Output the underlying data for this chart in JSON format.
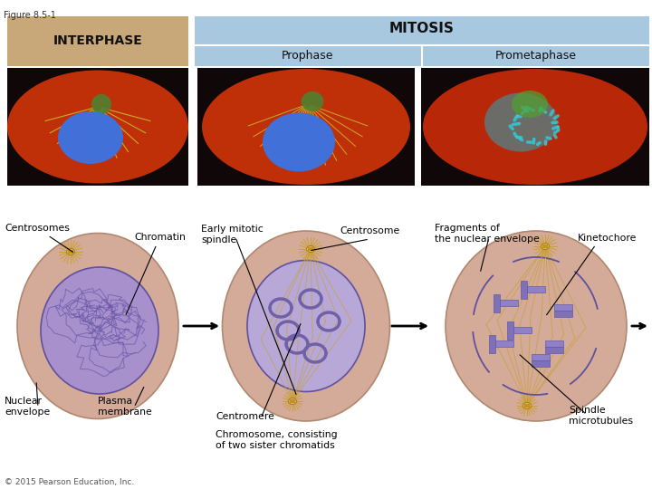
{
  "figure_label": "Figure 8.5-1",
  "background_color": "#ffffff",
  "interphase_box_color": "#c8a878",
  "mitosis_box_color": "#a8c8e0",
  "interphase_label": "INTERPHASE",
  "mitosis_label": "MITOSIS",
  "prophase_label": "Prophase",
  "prometaphase_label": "Prometaphase",
  "copyright": "© 2015 Pearson Education, Inc.",
  "cell_body_color": "#d4aa98",
  "cell_body_edge": "#b08870",
  "nucleus_interphase_color": "#a890cc",
  "nucleus_edge": "#6050a0",
  "centrosome_color": "#c8a030",
  "spindle_color": "#c8a030",
  "chromosome_color": "#8070b8"
}
